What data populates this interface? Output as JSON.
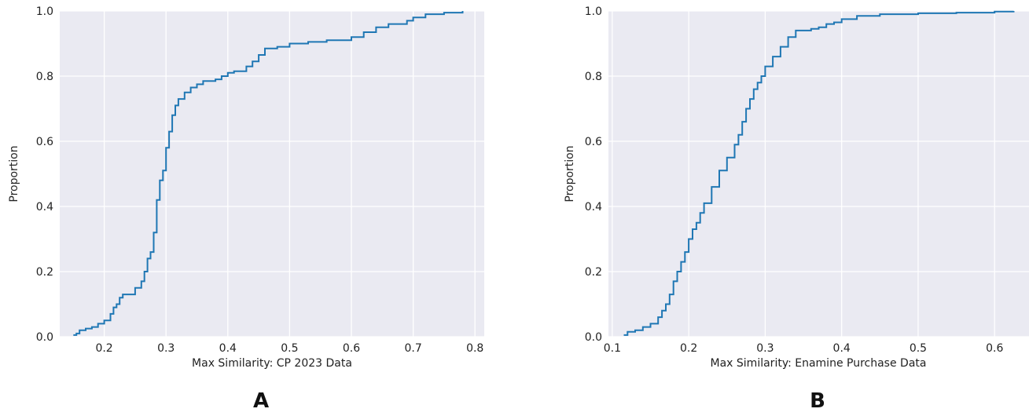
{
  "chart_data": [
    {
      "type": "line",
      "panel_label": "A",
      "xlabel": "Max Similarity: CP 2023 Data",
      "ylabel": "Proportion",
      "xlim": [
        0.128,
        0.815
      ],
      "ylim": [
        0.0,
        1.0
      ],
      "xticks": [
        0.2,
        0.3,
        0.4,
        0.5,
        0.6,
        0.7,
        0.8
      ],
      "yticks": [
        0.0,
        0.2,
        0.4,
        0.6,
        0.8,
        1.0
      ],
      "grid": true,
      "series": [
        {
          "color": "#1f77b4",
          "x": [
            0.15,
            0.155,
            0.16,
            0.17,
            0.18,
            0.19,
            0.2,
            0.21,
            0.215,
            0.22,
            0.225,
            0.23,
            0.24,
            0.25,
            0.26,
            0.265,
            0.27,
            0.275,
            0.28,
            0.285,
            0.29,
            0.295,
            0.3,
            0.305,
            0.31,
            0.315,
            0.32,
            0.33,
            0.34,
            0.35,
            0.36,
            0.38,
            0.39,
            0.4,
            0.41,
            0.43,
            0.44,
            0.45,
            0.46,
            0.48,
            0.5,
            0.53,
            0.56,
            0.6,
            0.62,
            0.64,
            0.66,
            0.69,
            0.7,
            0.72,
            0.75,
            0.78
          ],
          "y": [
            0.005,
            0.01,
            0.02,
            0.025,
            0.03,
            0.04,
            0.05,
            0.07,
            0.09,
            0.1,
            0.12,
            0.13,
            0.13,
            0.15,
            0.17,
            0.2,
            0.24,
            0.26,
            0.32,
            0.42,
            0.48,
            0.51,
            0.58,
            0.63,
            0.68,
            0.71,
            0.73,
            0.75,
            0.765,
            0.775,
            0.785,
            0.79,
            0.8,
            0.81,
            0.815,
            0.83,
            0.845,
            0.865,
            0.885,
            0.89,
            0.9,
            0.905,
            0.91,
            0.92,
            0.935,
            0.95,
            0.96,
            0.97,
            0.98,
            0.99,
            0.995,
            1.0
          ]
        }
      ]
    },
    {
      "type": "line",
      "panel_label": "B",
      "xlabel": "Max Similarity: Enamine Purchase Data",
      "ylabel": "Proportion",
      "xlim": [
        0.095,
        0.645
      ],
      "ylim": [
        0.0,
        1.0
      ],
      "xticks": [
        0.1,
        0.2,
        0.3,
        0.4,
        0.5,
        0.6
      ],
      "yticks": [
        0.0,
        0.2,
        0.4,
        0.6,
        0.8,
        1.0
      ],
      "grid": true,
      "series": [
        {
          "color": "#1f77b4",
          "x": [
            0.115,
            0.12,
            0.13,
            0.14,
            0.15,
            0.16,
            0.165,
            0.17,
            0.175,
            0.18,
            0.185,
            0.19,
            0.195,
            0.2,
            0.205,
            0.21,
            0.215,
            0.22,
            0.23,
            0.24,
            0.25,
            0.26,
            0.265,
            0.27,
            0.275,
            0.28,
            0.285,
            0.29,
            0.295,
            0.3,
            0.31,
            0.32,
            0.33,
            0.34,
            0.36,
            0.37,
            0.38,
            0.39,
            0.4,
            0.42,
            0.45,
            0.5,
            0.55,
            0.6,
            0.625
          ],
          "y": [
            0.005,
            0.015,
            0.02,
            0.03,
            0.04,
            0.06,
            0.08,
            0.1,
            0.13,
            0.17,
            0.2,
            0.23,
            0.26,
            0.3,
            0.33,
            0.35,
            0.38,
            0.41,
            0.46,
            0.51,
            0.55,
            0.59,
            0.62,
            0.66,
            0.7,
            0.73,
            0.76,
            0.78,
            0.8,
            0.83,
            0.86,
            0.89,
            0.92,
            0.94,
            0.945,
            0.95,
            0.96,
            0.965,
            0.975,
            0.985,
            0.99,
            0.993,
            0.995,
            0.998,
            1.0
          ]
        }
      ]
    }
  ]
}
